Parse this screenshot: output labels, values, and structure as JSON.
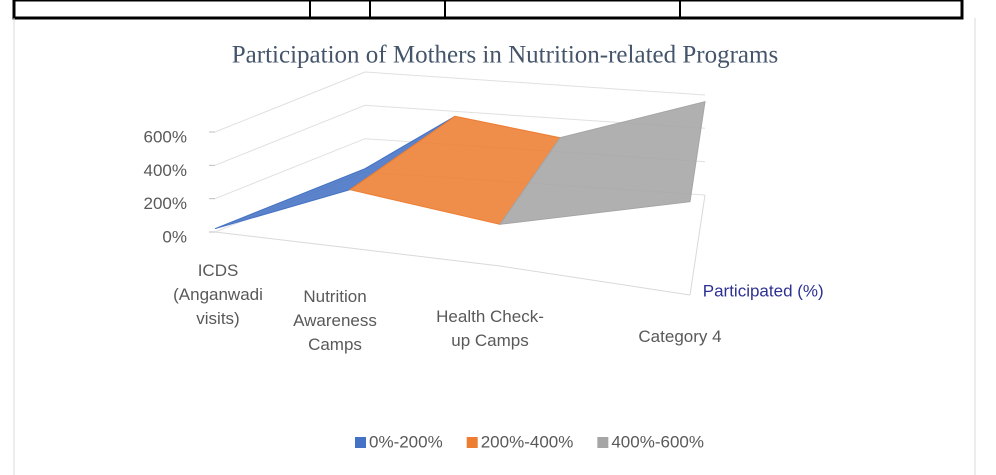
{
  "chart_data": {
    "type": "surface",
    "title": "Participation of Mothers in Nutrition-related Programs",
    "categories": [
      "ICDS (Anganwadi visits)",
      "Nutrition Awareness Camps",
      "Health Check-up Camps",
      "Category 4"
    ],
    "series": [
      {
        "name": "Participated (%)",
        "values": [
          20,
          350,
          250,
          560
        ]
      }
    ],
    "zlim": [
      0,
      600
    ],
    "zticks": [
      {
        "value": 0,
        "label": "0%"
      },
      {
        "value": 200,
        "label": "200%"
      },
      {
        "value": 400,
        "label": "400%"
      },
      {
        "value": 600,
        "label": "600%"
      }
    ],
    "grid": true,
    "bands": [
      {
        "from": 0,
        "to": 200,
        "label": "0%-200%",
        "color": "#4472c4"
      },
      {
        "from": 200,
        "to": 400,
        "label": "200%-400%",
        "color": "#ed7d31"
      },
      {
        "from": 400,
        "to": 600,
        "label": "400%-600%",
        "color": "#a5a5a5"
      }
    ]
  }
}
